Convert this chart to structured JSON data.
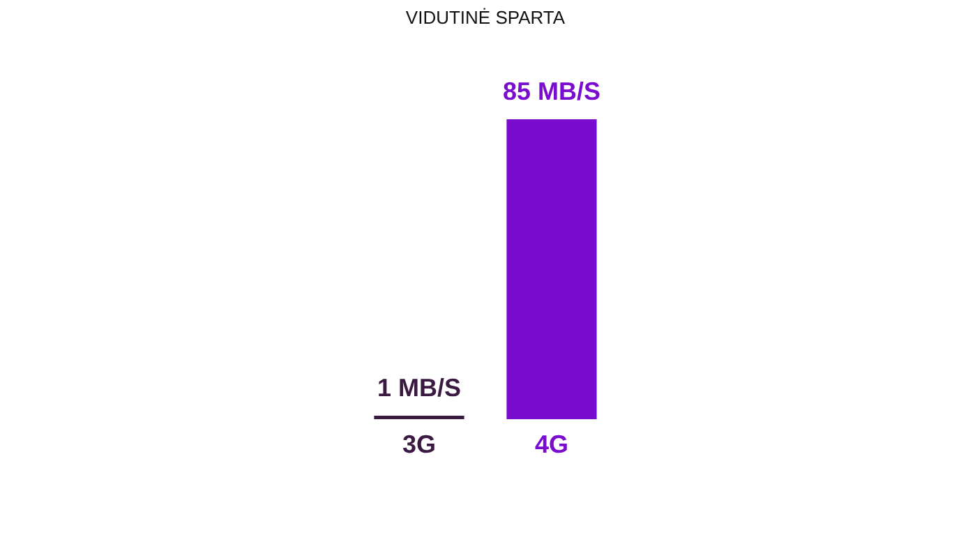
{
  "chart_data": {
    "type": "bar",
    "title": "VIDUTINĖ SPARTA",
    "categories": [
      "3G",
      "4G"
    ],
    "values": [
      1,
      85
    ],
    "colors": [
      "#3a1a40",
      "#7a0cd0"
    ],
    "value_labels": [
      "1 MB/S",
      "85 MB/S"
    ],
    "grid": false
  }
}
